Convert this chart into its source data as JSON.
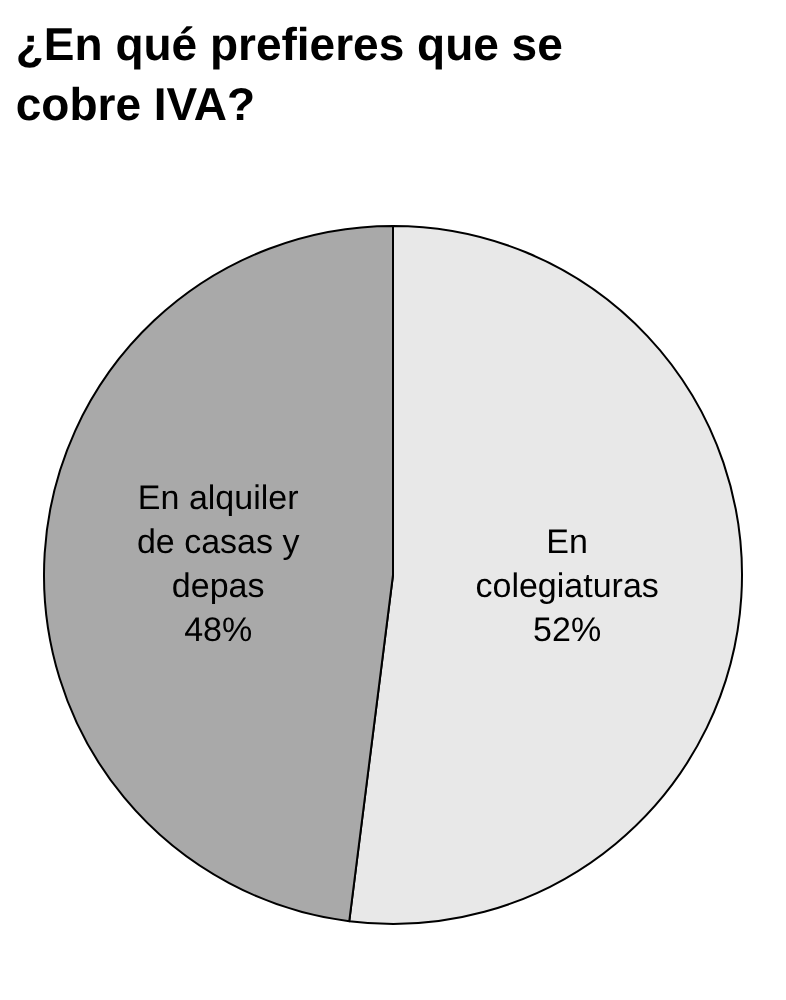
{
  "chart_data": {
    "type": "pie",
    "title": "¿En qué prefieres que se cobre IVA?",
    "categories": [
      "En colegiaturas",
      "En alquiler de casas y depas"
    ],
    "values": [
      52,
      48
    ],
    "colors": [
      "#e8e8e8",
      "#a9a9a9"
    ],
    "value_labels": [
      "52%",
      "48%"
    ],
    "legend": false
  }
}
